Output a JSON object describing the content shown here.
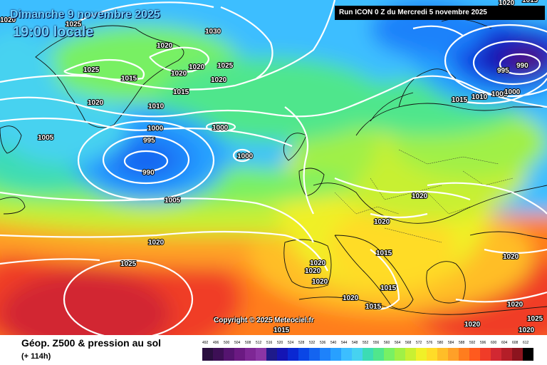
{
  "title": {
    "date": "Dimanche 9 novembre 2025",
    "time": "19:00 locale"
  },
  "run": "Run ICON 0 Z du Mercredi 5 novembre 2025",
  "copyright": "Copyright © 2025 Meteociel.fr",
  "legend": {
    "title": "Géop. Z500 & pression au sol",
    "subtitle": "(+ 114h)",
    "scale": [
      {
        "v": "492",
        "c": "#2a0f3f"
      },
      {
        "v": "496",
        "c": "#3d0f55"
      },
      {
        "v": "500",
        "c": "#551470"
      },
      {
        "v": "504",
        "c": "#6b1a82"
      },
      {
        "v": "508",
        "c": "#7e2795"
      },
      {
        "v": "512",
        "c": "#8b35a5"
      },
      {
        "v": "516",
        "c": "#1e1a8a"
      },
      {
        "v": "520",
        "c": "#1414b4"
      },
      {
        "v": "524",
        "c": "#0a28d2"
      },
      {
        "v": "528",
        "c": "#0a46e6"
      },
      {
        "v": "532",
        "c": "#1464f0"
      },
      {
        "v": "536",
        "c": "#1e82fa"
      },
      {
        "v": "540",
        "c": "#28a0ff"
      },
      {
        "v": "544",
        "c": "#3cbeff"
      },
      {
        "v": "548",
        "c": "#46d2f0"
      },
      {
        "v": "552",
        "c": "#3cdcb4"
      },
      {
        "v": "556",
        "c": "#50e68c"
      },
      {
        "v": "560",
        "c": "#78f064"
      },
      {
        "v": "564",
        "c": "#a0f046"
      },
      {
        "v": "568",
        "c": "#c8f032"
      },
      {
        "v": "572",
        "c": "#f0f028"
      },
      {
        "v": "576",
        "c": "#ffdc28"
      },
      {
        "v": "580",
        "c": "#ffbe28"
      },
      {
        "v": "584",
        "c": "#ffa028"
      },
      {
        "v": "588",
        "c": "#ff7d1e"
      },
      {
        "v": "592",
        "c": "#ff5a1e"
      },
      {
        "v": "596",
        "c": "#f03c28"
      },
      {
        "v": "600",
        "c": "#d22832"
      },
      {
        "v": "604",
        "c": "#b41e28"
      },
      {
        "v": "608",
        "c": "#8c141e"
      },
      {
        "v": "612",
        "c": "#000000"
      }
    ]
  },
  "isobars": [
    {
      "id": "i1020a",
      "label": "1020"
    },
    {
      "id": "i1030",
      "label": "1030"
    },
    {
      "id": "i1020b",
      "label": "1020"
    },
    {
      "id": "i1025a",
      "label": "1025"
    },
    {
      "id": "i1015a",
      "label": "1015"
    },
    {
      "id": "i1020c",
      "label": "1020"
    },
    {
      "id": "i1020d",
      "label": "1020"
    },
    {
      "id": "i1025b",
      "label": "1025"
    },
    {
      "id": "i1015b",
      "label": "1015"
    },
    {
      "id": "i1020e",
      "label": "1020"
    },
    {
      "id": "i1020f",
      "label": "1020"
    },
    {
      "id": "i1010a",
      "label": "1010"
    },
    {
      "id": "i1025c",
      "label": "1025"
    },
    {
      "id": "i1005a",
      "label": "1005"
    },
    {
      "id": "i1000a",
      "label": "1000"
    },
    {
      "id": "i1000b",
      "label": "1000"
    },
    {
      "id": "i995a",
      "label": "995"
    },
    {
      "id": "i990a",
      "label": "990"
    },
    {
      "id": "i1000c",
      "label": "1000"
    },
    {
      "id": "i1005b",
      "label": "1005"
    },
    {
      "id": "i1020g",
      "label": "1020"
    },
    {
      "id": "i1025d",
      "label": "1025"
    },
    {
      "id": "i1020h",
      "label": "1020"
    },
    {
      "id": "i1020i",
      "label": "1020"
    },
    {
      "id": "i1015c",
      "label": "1015"
    },
    {
      "id": "i1020j",
      "label": "1020"
    },
    {
      "id": "i1020k",
      "label": "1020"
    },
    {
      "id": "i1020l",
      "label": "1020"
    },
    {
      "id": "i1015d",
      "label": "1015"
    },
    {
      "id": "i1020m",
      "label": "1020"
    },
    {
      "id": "i1015e",
      "label": "1015"
    },
    {
      "id": "i1015f",
      "label": "1015"
    },
    {
      "id": "i1010b",
      "label": "1010"
    },
    {
      "id": "i1005c",
      "label": "1005"
    },
    {
      "id": "i1000d",
      "label": "1000"
    },
    {
      "id": "i995b",
      "label": "995"
    },
    {
      "id": "i990b",
      "label": "990"
    },
    {
      "id": "i1020n",
      "label": "1020"
    },
    {
      "id": "i1020o",
      "label": "1020"
    },
    {
      "id": "i1025e",
      "label": "1025"
    },
    {
      "id": "i1020p",
      "label": "1020"
    },
    {
      "id": "i1020q",
      "label": "1020"
    },
    {
      "id": "i1015g",
      "label": "1015"
    },
    {
      "id": "i1015h",
      "label": "1015"
    },
    {
      "id": "i1020r",
      "label": "1020"
    }
  ]
}
